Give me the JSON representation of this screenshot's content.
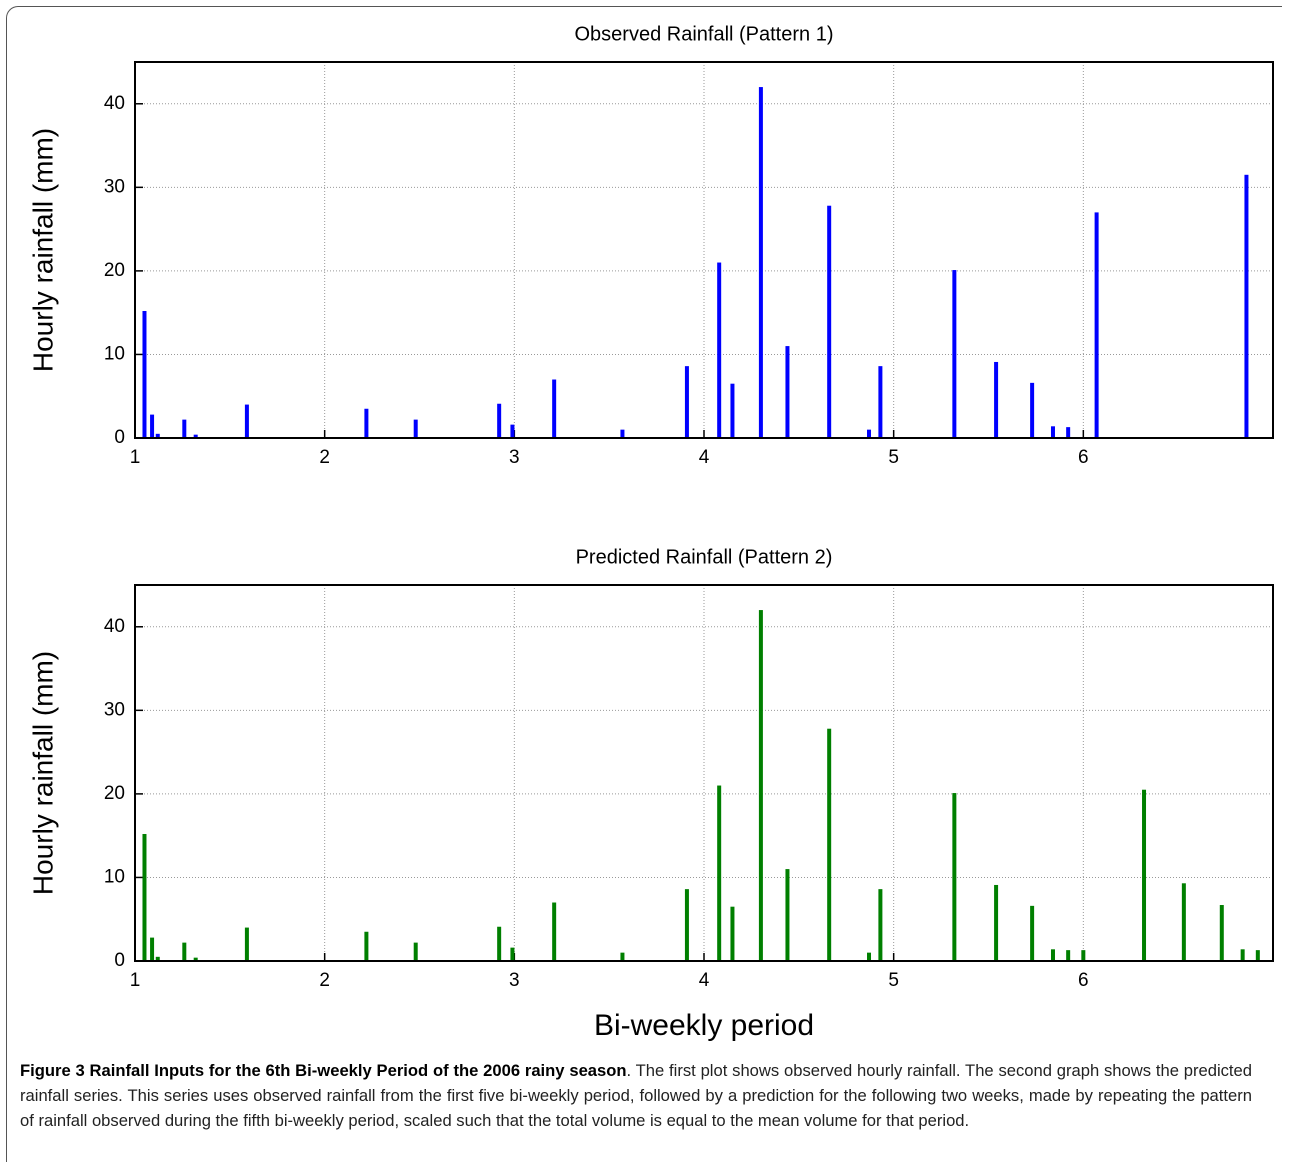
{
  "chart_data": [
    {
      "type": "bar",
      "title": "Observed Rainfall (Pattern 1)",
      "y_label": "Hourly rainfall (mm)",
      "x": [
        1.05,
        1.09,
        1.12,
        1.26,
        1.32,
        1.59,
        2.22,
        2.48,
        2.92,
        2.99,
        3.21,
        3.57,
        3.91,
        4.08,
        4.15,
        4.3,
        4.44,
        4.66,
        4.87,
        4.93,
        5.32,
        5.54,
        5.73,
        5.84,
        5.92,
        6.07,
        6.86
      ],
      "series": [
        {
          "color": "#0000ff",
          "values": [
            15.2,
            2.8,
            0.5,
            2.2,
            0.4,
            4,
            3.5,
            2.2,
            4.1,
            1.6,
            7,
            1,
            8.6,
            21,
            6.5,
            42,
            11,
            27.8,
            1,
            8.6,
            20.1,
            9.1,
            6.6,
            1.4,
            1.3,
            27,
            31.5
          ]
        }
      ],
      "xlim": [
        1,
        7
      ],
      "xticks": [
        1,
        2,
        3,
        4,
        5,
        6
      ],
      "ylim": [
        0,
        45
      ],
      "yticks": [
        0,
        10,
        20,
        30,
        40
      ],
      "grid": true
    },
    {
      "type": "bar",
      "title": "Predicted Rainfall (Pattern 2)",
      "y_label": "Hourly rainfall (mm)",
      "x_label": "Bi-weekly period",
      "x": [
        1.05,
        1.09,
        1.12,
        1.26,
        1.32,
        1.59,
        2.22,
        2.48,
        2.92,
        2.99,
        3.21,
        3.57,
        3.91,
        4.08,
        4.15,
        4.3,
        4.44,
        4.66,
        4.87,
        4.93,
        5.32,
        5.54,
        5.73,
        5.84,
        5.92,
        6.0,
        6.32,
        6.53,
        6.73,
        6.84,
        6.92
      ],
      "series": [
        {
          "color": "#007f00",
          "values": [
            15.2,
            2.8,
            0.5,
            2.2,
            0.4,
            4,
            3.5,
            2.2,
            4.1,
            1.6,
            7,
            1,
            8.6,
            21,
            6.5,
            42,
            11,
            27.8,
            1,
            8.6,
            20.1,
            9.1,
            6.6,
            1.4,
            1.3,
            1.3,
            20.5,
            9.3,
            6.7,
            1.4,
            1.3
          ]
        }
      ],
      "xlim": [
        1,
        7
      ],
      "xticks": [
        1,
        2,
        3,
        4,
        5,
        6
      ],
      "ylim": [
        0,
        45
      ],
      "yticks": [
        0,
        10,
        20,
        30,
        40
      ],
      "grid": true
    }
  ],
  "caption": {
    "label": "Figure 3 Rainfall Inputs for the 6th Bi-weekly Period of the 2006 rainy season",
    "text": ". The first plot shows observed hourly rainfall. The second graph shows the predicted rainfall series. This series uses observed rainfall from the first five bi-weekly period, followed by a prediction for the following two weeks, made by repeating the pattern of rainfall observed during the fifth bi-weekly period, scaled such that the total volume is equal to the mean volume for that period."
  }
}
